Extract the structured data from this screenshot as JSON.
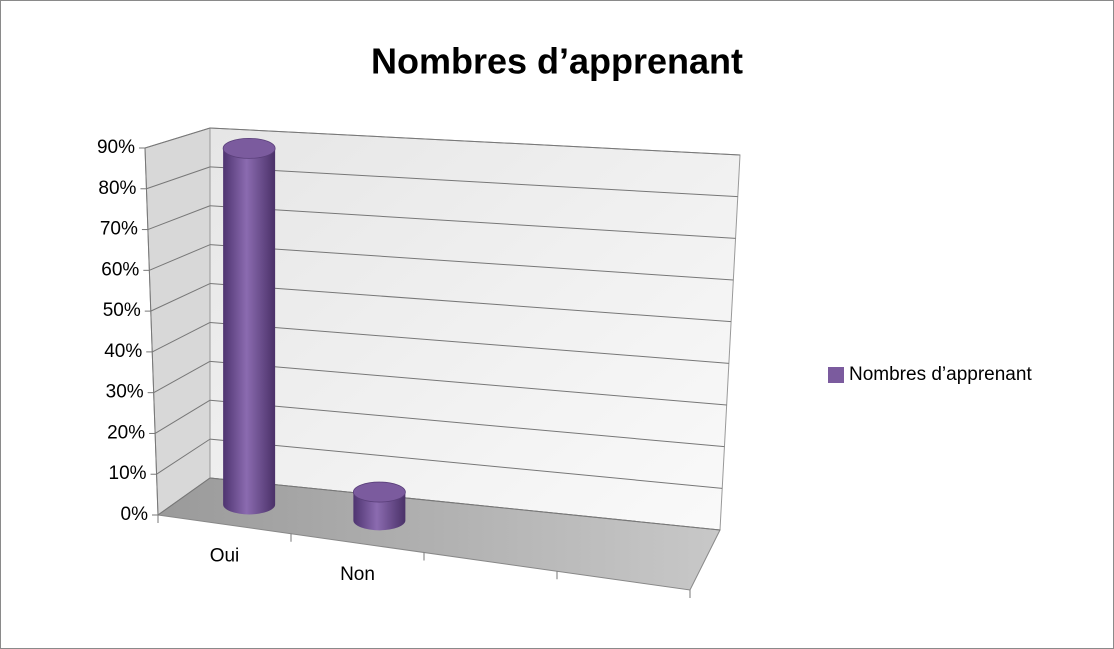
{
  "chart_data": {
    "type": "bar",
    "title": "Nombres d’apprenant",
    "categories": [
      "Oui",
      "Non",
      null,
      null
    ],
    "series": [
      {
        "name": "Nombres d’apprenant",
        "color": "#7b5b9e",
        "values": [
          89,
          7,
          null,
          null
        ]
      }
    ],
    "ylim": [
      0,
      90
    ],
    "yticks": [
      {
        "value": 0,
        "label": "0%"
      },
      {
        "value": 10,
        "label": "10%"
      },
      {
        "value": 20,
        "label": "20%"
      },
      {
        "value": 30,
        "label": "30%"
      },
      {
        "value": 40,
        "label": "40%"
      },
      {
        "value": 50,
        "label": "50%"
      },
      {
        "value": 60,
        "label": "60%"
      },
      {
        "value": 70,
        "label": "70%"
      },
      {
        "value": 80,
        "label": "80%"
      },
      {
        "value": 90,
        "label": "90%"
      }
    ],
    "grid": true,
    "legend": "right"
  }
}
